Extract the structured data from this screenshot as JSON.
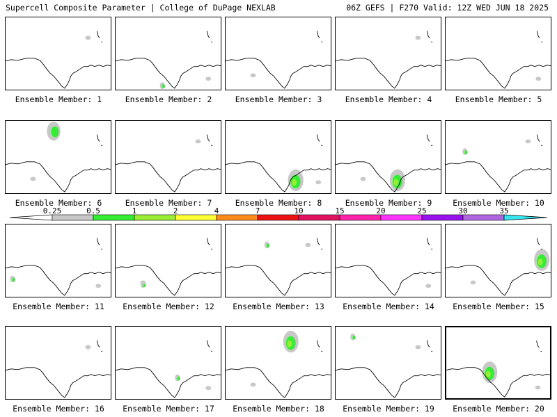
{
  "header": {
    "left": "Supercell Composite Parameter | College of DuPage NEXLAB",
    "right": "06Z GEFS | F270 Valid: 12Z WED JUN 18 2025"
  },
  "members": [
    {
      "label": "Ensemble Member: 1",
      "intensity": 0
    },
    {
      "label": "Ensemble Member: 2",
      "intensity": 1
    },
    {
      "label": "Ensemble Member: 3",
      "intensity": 0
    },
    {
      "label": "Ensemble Member: 4",
      "intensity": 0
    },
    {
      "label": "Ensemble Member: 5",
      "intensity": 0
    },
    {
      "label": "Ensemble Member: 6",
      "intensity": 3
    },
    {
      "label": "Ensemble Member: 7",
      "intensity": 0
    },
    {
      "label": "Ensemble Member: 8",
      "intensity": 2
    },
    {
      "label": "Ensemble Member: 9",
      "intensity": 2
    },
    {
      "label": "Ensemble Member: 10",
      "intensity": 1
    },
    {
      "label": "Ensemble Member: 11",
      "intensity": 1
    },
    {
      "label": "Ensemble Member: 12",
      "intensity": 1
    },
    {
      "label": "Ensemble Member: 13",
      "intensity": 1
    },
    {
      "label": "Ensemble Member: 14",
      "intensity": 0
    },
    {
      "label": "Ensemble Member: 15",
      "intensity": 2
    },
    {
      "label": "Ensemble Member: 16",
      "intensity": 0
    },
    {
      "label": "Ensemble Member: 17",
      "intensity": 1
    },
    {
      "label": "Ensemble Member: 18",
      "intensity": 2
    },
    {
      "label": "Ensemble Member: 19",
      "intensity": 1
    },
    {
      "label": "Ensemble Member: 20",
      "intensity": 2,
      "selected": true
    }
  ],
  "colorbar": {
    "labels": [
      "0.25",
      "0.5",
      "1",
      "2",
      "4",
      "7",
      "10",
      "15",
      "20",
      "25",
      "30",
      "35"
    ],
    "colors": [
      "#c8c8c8",
      "#33ee33",
      "#99ee33",
      "#ffff33",
      "#ff8c1a",
      "#ee1111",
      "#e0115f",
      "#ff22aa",
      "#ff33ff",
      "#9911ee",
      "#b066e0",
      "#33e5ee"
    ]
  }
}
